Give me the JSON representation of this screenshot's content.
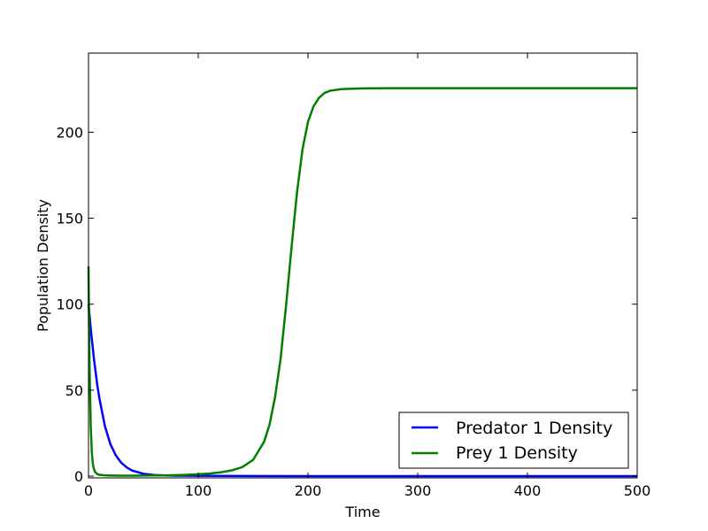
{
  "chart_data": {
    "type": "line",
    "title": "",
    "xlabel": "Time",
    "ylabel": "Population Density",
    "xlim": [
      0,
      500
    ],
    "ylim": [
      -1,
      246
    ],
    "xticks": [
      0,
      100,
      200,
      300,
      400,
      500
    ],
    "yticks": [
      0,
      50,
      100,
      150,
      200
    ],
    "grid": false,
    "legend_position": "lower-right",
    "series": [
      {
        "name": "Predator 1 Density",
        "color": "#0000ff",
        "x": [
          0,
          2,
          5,
          8,
          10,
          15,
          20,
          25,
          30,
          35,
          40,
          50,
          60,
          70,
          80,
          100,
          150,
          200,
          300,
          400,
          500
        ],
        "y": [
          100,
          86,
          68,
          53,
          45,
          29,
          18.5,
          12,
          7.7,
          5,
          3.2,
          1.4,
          0.7,
          0.4,
          0.3,
          0.2,
          0.1,
          0.05,
          0.02,
          0.01,
          0.01
        ]
      },
      {
        "name": "Prey 1 Density",
        "color": "#007f00",
        "x": [
          0,
          0.5,
          1,
          2,
          3,
          4,
          5,
          6,
          8,
          10,
          15,
          20,
          30,
          40,
          50,
          60,
          70,
          80,
          90,
          100,
          110,
          120,
          130,
          140,
          150,
          160,
          165,
          170,
          175,
          180,
          185,
          190,
          195,
          200,
          205,
          210,
          215,
          220,
          230,
          240,
          250,
          275,
          300,
          350,
          400,
          450,
          500
        ],
        "y": [
          122,
          90,
          62,
          30,
          14,
          7,
          4,
          2.5,
          1.2,
          0.8,
          0.45,
          0.35,
          0.3,
          0.3,
          0.35,
          0.4,
          0.5,
          0.6,
          0.8,
          1.1,
          1.5,
          2.2,
          3.3,
          5.2,
          9.5,
          20,
          30,
          46,
          68,
          99,
          133,
          165,
          190,
          206,
          215,
          220,
          222.8,
          224.1,
          225,
          225.3,
          225.5,
          225.6,
          225.6,
          225.6,
          225.6,
          225.6,
          225.6
        ]
      }
    ]
  }
}
